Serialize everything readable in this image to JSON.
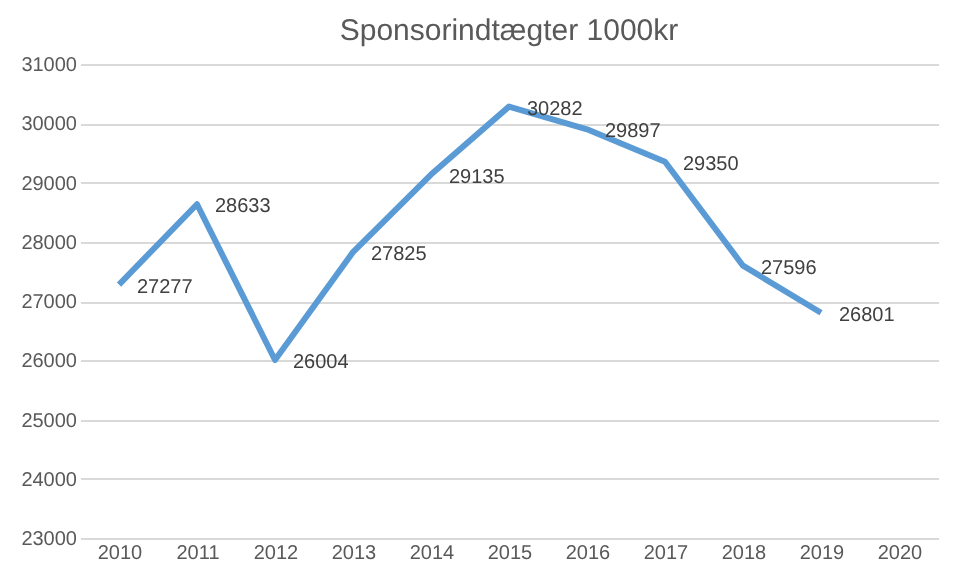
{
  "chart_data": {
    "type": "line",
    "title": "Sponsorindtægter 1000kr",
    "categories": [
      "2010",
      "2011",
      "2012",
      "2013",
      "2014",
      "2015",
      "2016",
      "2017",
      "2018",
      "2019",
      "2020"
    ],
    "series": [
      {
        "color": "#5b9bd5",
        "values": [
          27277,
          28633,
          26004,
          27825,
          29135,
          30282,
          29897,
          29350,
          27596,
          26801,
          null
        ]
      }
    ],
    "ylim": [
      23000,
      31000
    ],
    "yticks": [
      23000,
      24000,
      25000,
      26000,
      27000,
      28000,
      29000,
      30000,
      31000
    ],
    "grid": "y",
    "data_labels": true,
    "marker": "none",
    "line_style": "solid",
    "legend": false
  }
}
